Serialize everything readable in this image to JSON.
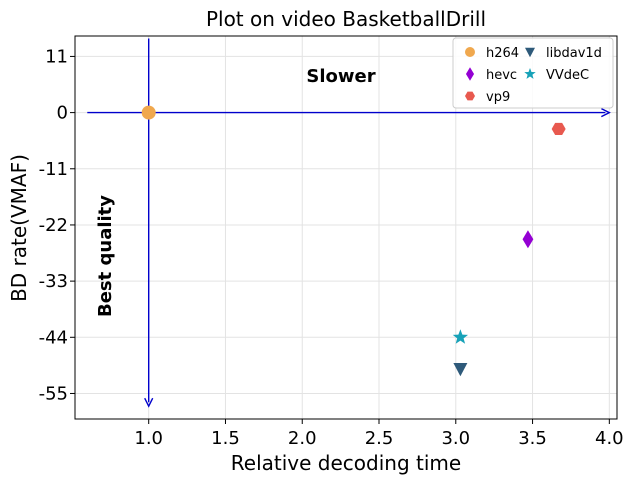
{
  "chart_data": {
    "type": "scatter",
    "title": "Plot on video BasketballDrill",
    "xlabel": "Relative decoding time",
    "ylabel": "BD rate(VMAF)",
    "xlim": [
      0.52,
      4.05
    ],
    "ylim": [
      -60,
      15
    ],
    "xticks": [
      1.0,
      1.5,
      2.0,
      2.5,
      3.0,
      3.5,
      4.0
    ],
    "xtick_labels": [
      "1.0",
      "1.5",
      "2.0",
      "2.5",
      "3.0",
      "3.5",
      "4.0"
    ],
    "yticks": [
      11,
      0,
      -11,
      -22,
      -33,
      -44,
      -55
    ],
    "ytick_labels": [
      "11",
      "0",
      "-11",
      "-22",
      "-33",
      "-44",
      "-55"
    ],
    "grid": true,
    "legend_position": "top-right",
    "series": [
      {
        "name": "h264",
        "marker": "circle",
        "color": "#f0a84e",
        "points": [
          {
            "x": 1.0,
            "y": 0.0
          }
        ]
      },
      {
        "name": "hevc",
        "marker": "thin-diamond",
        "color": "#9400d3",
        "points": [
          {
            "x": 3.47,
            "y": -24.8
          }
        ]
      },
      {
        "name": "vp9",
        "marker": "hexagon",
        "color": "#e8594f",
        "points": [
          {
            "x": 3.67,
            "y": -3.2
          }
        ]
      },
      {
        "name": "libdav1d",
        "marker": "triangle-down",
        "color": "#2e5a7a",
        "points": [
          {
            "x": 3.03,
            "y": -50.2
          }
        ]
      },
      {
        "name": "VVdeC",
        "marker": "star",
        "color": "#17a2b8",
        "points": [
          {
            "x": 3.03,
            "y": -44.0
          }
        ]
      }
    ],
    "annotations": [
      {
        "text": "Slower",
        "direction": "x-increasing"
      },
      {
        "text": "Best quality",
        "direction": "y-decreasing"
      }
    ],
    "reference_lines": {
      "origin": {
        "x": 1.0,
        "y": 0.0
      },
      "x_arrow_from": 0.6,
      "x_arrow_to": 4.0,
      "y_arrow_from": 14.5,
      "y_arrow_to": -57.5,
      "color": "#0000cc"
    }
  }
}
